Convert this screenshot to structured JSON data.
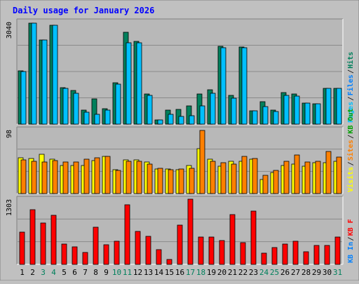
{
  "chart_data": {
    "type": "bar",
    "title": "Daily usage for January 2026",
    "colors": {
      "background": "#c0c0c0",
      "plot_bg": "#b8b8b8",
      "title": "#0000ff",
      "hits": "#00805c",
      "files": "#0080ff",
      "pages": "#00c0ff",
      "visits": "#ffff00",
      "sites": "#ff8000",
      "kb_in": "#0080ff",
      "kb_out": "#00a000",
      "kb_f": "#ff0000"
    },
    "days": [
      "1",
      "2",
      "3",
      "4",
      "5",
      "6",
      "7",
      "8",
      "9",
      "10",
      "11",
      "12",
      "13",
      "14",
      "15",
      "16",
      "17",
      "18",
      "19",
      "20",
      "21",
      "22",
      "23",
      "24",
      "25",
      "26",
      "27",
      "28",
      "29",
      "30",
      "31"
    ],
    "weekend_days": [
      "3",
      "4",
      "10",
      "11",
      "17",
      "18",
      "24",
      "25",
      "31"
    ],
    "panels": [
      {
        "id": "hits",
        "max_label": "3040",
        "max": 3040,
        "legend": [
          {
            "text": "Pages",
            "color": "#00c0ff"
          },
          {
            "text": "Files",
            "color": "#0080ff"
          },
          {
            "text": "Hits",
            "color": "#00805c"
          }
        ],
        "series": [
          {
            "name": "Hits",
            "color": "#00805c",
            "values": [
              1580,
              3000,
              2500,
              2940,
              1080,
              1000,
              420,
              740,
              460,
              1220,
              2720,
              2450,
              900,
              120,
              410,
              430,
              540,
              900,
              1010,
              2320,
              860,
              2280,
              400,
              660,
              420,
              930,
              900,
              630,
              610,
              1070,
              1070
            ]
          },
          {
            "name": "Files",
            "color": "#00c0ff",
            "values": [
              1560,
              3000,
              2500,
              2940,
              1060,
              920,
              360,
              300,
              420,
              1180,
              2420,
              2420,
              860,
              120,
              300,
              220,
              260,
              550,
              920,
              2270,
              780,
              2270,
              390,
              530,
              370,
              860,
              840,
              630,
              610,
              1060,
              1060
            ]
          }
        ]
      },
      {
        "id": "visits",
        "max_label": "98",
        "max": 98,
        "legend": [
          {
            "text": "Visits",
            "color": "#ffff00"
          },
          {
            "text": "Sites",
            "color": "#ff8000"
          },
          {
            "text": "KB Out",
            "color": "#00a000"
          }
        ],
        "series": [
          {
            "name": "Visits",
            "color": "#ffff00",
            "values": [
              55,
              54,
              60,
              53,
              43,
              43,
              43,
              51,
              57,
              37,
              52,
              52,
              48,
              38,
              38,
              37,
              43,
              69,
              53,
              42,
              49,
              49,
              53,
              21,
              32,
              43,
              45,
              42,
              47,
              47,
              49
            ]
          },
          {
            "name": "Sites",
            "color": "#ff8000",
            "values": [
              52,
              50,
              48,
              51,
              48,
              48,
              53,
              55,
              57,
              36,
              50,
              49,
              45,
              39,
              37,
              38,
              39,
              97,
              50,
              47,
              45,
              57,
              54,
              28,
              35,
              49,
              59,
              48,
              50,
              65,
              56
            ]
          }
        ]
      },
      {
        "id": "kbytes",
        "max_label": "1303",
        "max": 1303,
        "legend": [
          {
            "text": "KB In",
            "color": "#0080ff"
          },
          {
            "text": "KB F",
            "color": "#ff0000"
          }
        ],
        "series": [
          {
            "name": "KB F",
            "color": "#ff0000",
            "values": [
              640,
              1090,
              830,
              980,
              400,
              350,
              240,
              740,
              390,
              460,
              1190,
              660,
              560,
              300,
              100,
              780,
              1310,
              540,
              540,
              480,
              990,
              440,
              1060,
              220,
              340,
              400,
              460,
              250,
              380,
              380,
              550
            ]
          }
        ]
      }
    ]
  }
}
